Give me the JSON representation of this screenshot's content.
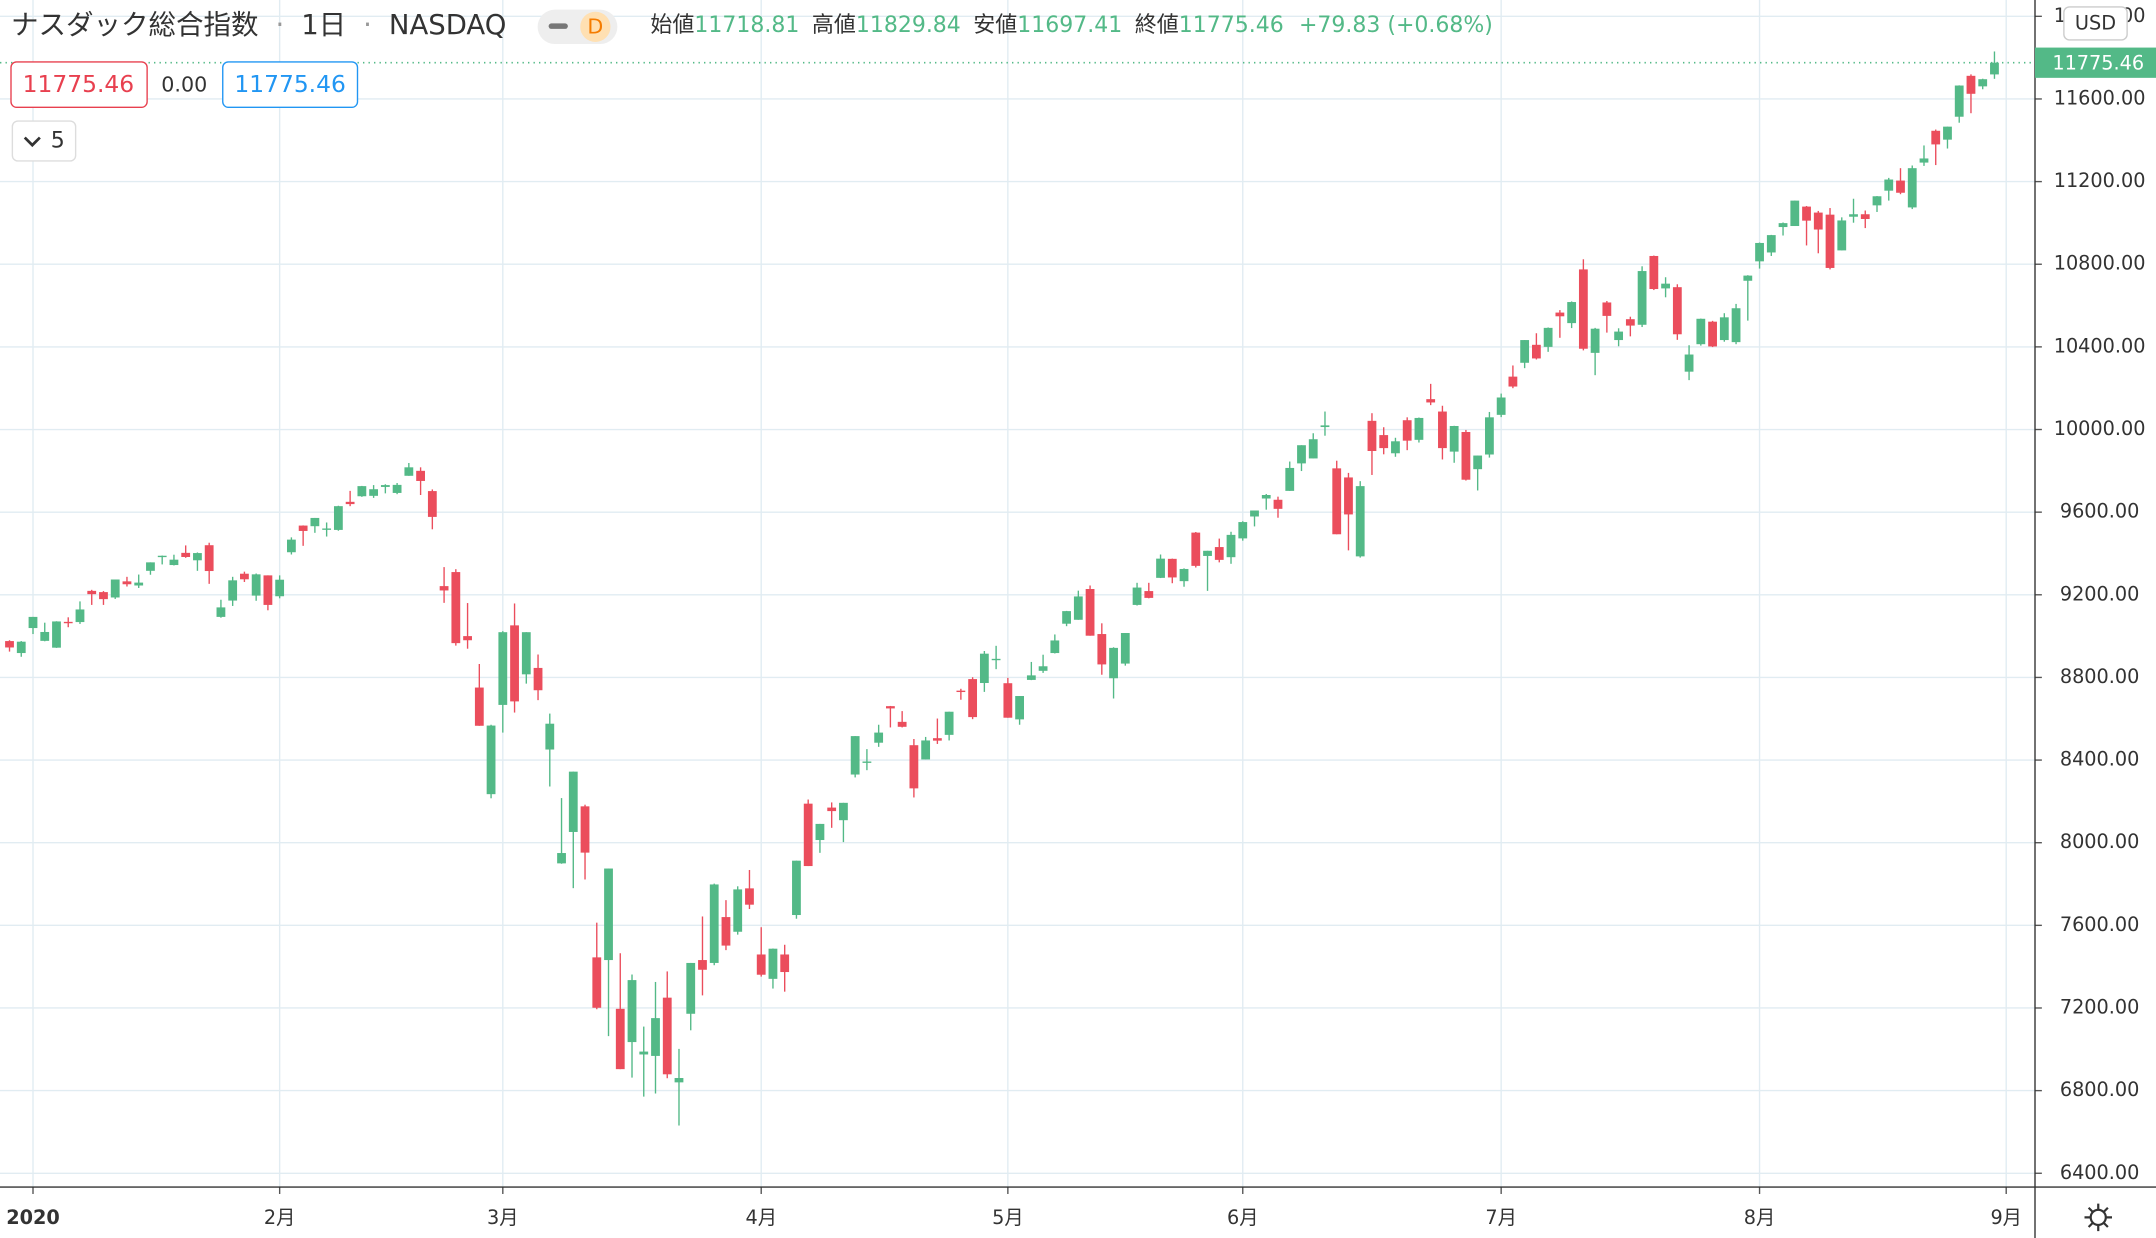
{
  "chart_data": {
    "type": "candlestick",
    "title": "ナスダック総合指数",
    "interval": "1日",
    "exchange": "NASDAQ",
    "resolution_badge": "D",
    "ohlc_labels": [
      "始値",
      "高値",
      "安値",
      "終値"
    ],
    "change": "+79.83 (+0.68%)",
    "indicator": {
      "upper": 11775.46,
      "middle": "0.00",
      "lower": 11775.46,
      "count": 5
    },
    "currency": "USD",
    "up_color": "#53b987",
    "down_color": "#eb4d5c",
    "grid": true,
    "ylim": [
      6333,
      12079
    ],
    "yticks": [
      {
        "value": 6400,
        "label": "6400.00"
      },
      {
        "value": 6800,
        "label": "6800.00"
      },
      {
        "value": 7200,
        "label": "7200.00"
      },
      {
        "value": 7600,
        "label": "7600.00"
      },
      {
        "value": 8000,
        "label": "8000.00"
      },
      {
        "value": 8400,
        "label": "8400.00"
      },
      {
        "value": 8800,
        "label": "8800.00"
      },
      {
        "value": 9200,
        "label": "9200.00"
      },
      {
        "value": 9600,
        "label": "9600.00"
      },
      {
        "value": 10000,
        "label": "10000.00"
      },
      {
        "value": 10400,
        "label": "10400.00"
      },
      {
        "value": 10800,
        "label": "10800.00"
      },
      {
        "value": 11200,
        "label": "11200.00"
      },
      {
        "value": 11600,
        "label": "11600.00"
      },
      {
        "value": 12000,
        "label": "12000.00"
      }
    ],
    "categories": [
      null,
      null,
      "2020",
      null,
      null,
      null,
      null,
      null,
      null,
      null,
      null,
      null,
      null,
      null,
      null,
      null,
      null,
      null,
      null,
      null,
      null,
      null,
      null,
      "2月",
      null,
      null,
      null,
      null,
      null,
      null,
      null,
      null,
      null,
      null,
      null,
      null,
      null,
      null,
      null,
      null,
      null,
      null,
      "3月",
      null,
      null,
      null,
      null,
      null,
      null,
      null,
      null,
      null,
      null,
      null,
      null,
      null,
      null,
      null,
      null,
      null,
      null,
      null,
      null,
      null,
      "4月",
      null,
      null,
      null,
      null,
      null,
      null,
      null,
      null,
      null,
      null,
      null,
      null,
      null,
      null,
      null,
      null,
      null,
      null,
      null,
      null,
      "5月",
      null,
      null,
      null,
      null,
      null,
      null,
      null,
      null,
      null,
      null,
      null,
      null,
      null,
      null,
      null,
      null,
      null,
      null,
      null,
      "6月",
      null,
      null,
      null,
      null,
      null,
      null,
      null,
      null,
      null,
      null,
      null,
      null,
      null,
      null,
      null,
      null,
      null,
      null,
      null,
      null,
      null,
      "7月",
      null,
      null,
      null,
      null,
      null,
      null,
      null,
      null,
      null,
      null,
      null,
      null,
      null,
      null,
      null,
      null,
      null,
      null,
      null,
      null,
      null,
      "8月",
      null,
      null,
      null,
      null,
      null,
      null,
      null,
      null,
      null,
      null,
      null,
      null,
      null,
      null,
      null,
      null,
      null,
      null,
      null,
      null,
      "9月"
    ],
    "open": [
      8976,
      8918,
      9039,
      8977,
      8944,
      9069,
      9068,
      9219,
      9213,
      9187,
      9265,
      9245,
      9316,
      9389,
      9344,
      9403,
      9367,
      9440,
      9093,
      9172,
      9302,
      9196,
      9294,
      9193,
      9406,
      9535,
      9532,
      9521,
      9514,
      9650,
      9677,
      9679,
      9722,
      9693,
      9776,
      9800,
      9702,
      9242,
      9310,
      9000,
      8751,
      8235,
      8667,
      9052,
      8815,
      8846,
      8451,
      7900,
      8052,
      8176,
      7445,
      7432,
      7196,
      7035,
      6975,
      6968,
      7250,
      6840,
      7172,
      7432,
      7418,
      7640,
      7569,
      7779,
      7459,
      7341,
      7459,
      7650,
      8189,
      8013,
      8170,
      8109,
      8330,
      8388,
      8484,
      8661,
      8585,
      8472,
      8403,
      8506,
      8522,
      8736,
      8792,
      8773,
      8889,
      8772,
      8597,
      8788,
      8832,
      8918,
      9060,
      9079,
      9228,
      9010,
      8796,
      8867,
      9151,
      9218,
      9282,
      9374,
      9266,
      9501,
      9388,
      9431,
      9382,
      9473,
      9579,
      9666,
      9660,
      9703,
      9836,
      9860,
      10012,
      9812,
      9768,
      9386,
      10042,
      9973,
      9885,
      10045,
      9950,
      10147,
      10087,
      9893,
      9988,
      9808,
      9879,
      10071,
      10256,
      10323,
      10410,
      10400,
      10566,
      10515,
      10775,
      10371,
      10615,
      10433,
      10534,
      10507,
      10840,
      10683,
      10689,
      10280,
      10413,
      10522,
      10433,
      10423,
      10720,
      10814,
      10857,
      10980,
      10985,
      11079,
      11050,
      11040,
      10867,
      11030,
      11042,
      11085,
      11156,
      11205,
      11075,
      11292,
      11446,
      11403,
      11514,
      11712,
      11661,
      11718.81,
      null
    ],
    "high": [
      8980,
      8976,
      9093,
      9065,
      9072,
      9091,
      9168,
      9224,
      9218,
      9274,
      9287,
      9298,
      9357,
      9390,
      9394,
      9439,
      9405,
      9452,
      9176,
      9287,
      9312,
      9303,
      9294,
      9294,
      9478,
      9536,
      9572,
      9550,
      9631,
      9703,
      9727,
      9731,
      9735,
      9741,
      9838,
      9817,
      9710,
      9334,
      9324,
      9160,
      8865,
      8571,
      9024,
      9158,
      9019,
      8911,
      8625,
      8216,
      8344,
      8184,
      7613,
      7875,
      7465,
      7362,
      7110,
      7326,
      7377,
      7002,
      7418,
      7643,
      7802,
      7722,
      7789,
      7868,
      7591,
      7488,
      7506,
      7913,
      8209,
      8091,
      8195,
      8193,
      8516,
      8453,
      8571,
      8662,
      8637,
      8502,
      8512,
      8601,
      8634,
      8745,
      8801,
      8928,
      8953,
      8798,
      8710,
      8875,
      8910,
      9008,
      9122,
      9220,
      9245,
      9062,
      8946,
      9015,
      9258,
      9258,
      9395,
      9375,
      9328,
      9504,
      9413,
      9472,
      9505,
      9556,
      9608,
      9688,
      9675,
      9845,
      9924,
      9982,
      10087,
      9849,
      9790,
      9750,
      10079,
      10011,
      9960,
      10059,
      10058,
      10221,
      10115,
      10018,
      9998,
      9874,
      10085,
      10174,
      10310,
      10433,
      10466,
      10494,
      10578,
      10620,
      10824,
      10492,
      10622,
      10490,
      10546,
      10790,
      10842,
      10737,
      10703,
      10408,
      10537,
      10526,
      10563,
      10608,
      10747,
      10905,
      10942,
      11002,
      11108,
      11082,
      11058,
      11072,
      11027,
      11117,
      11060,
      11130,
      11218,
      11265,
      11278,
      11375,
      11452,
      11466,
      11666,
      11719,
      11698,
      11829.84,
      null
    ],
    "low": [
      8925,
      8900,
      9010,
      8975,
      8943,
      9043,
      9059,
      9151,
      9151,
      9180,
      9240,
      9233,
      9297,
      9347,
      9342,
      9379,
      9316,
      9253,
      9089,
      9146,
      9262,
      9171,
      9125,
      9183,
      9395,
      9437,
      9500,
      9482,
      9510,
      9629,
      9674,
      9669,
      9691,
      9687,
      9776,
      9683,
      9517,
      9161,
      8954,
      8939,
      8566,
      8215,
      8533,
      8630,
      8770,
      8690,
      8272,
      7898,
      7780,
      7822,
      7194,
      7064,
      6904,
      6863,
      6771,
      6786,
      6860,
      6631,
      7092,
      7261,
      7407,
      7480,
      7555,
      7679,
      7352,
      7294,
      7279,
      7632,
      7887,
      7951,
      8072,
      8003,
      8316,
      8351,
      8464,
      8558,
      8558,
      8219,
      8403,
      8478,
      8495,
      8692,
      8598,
      8730,
      8840,
      8605,
      8571,
      8787,
      8822,
      8916,
      9048,
      9079,
      9002,
      8813,
      8698,
      8857,
      9148,
      9183,
      9281,
      9256,
      9239,
      9332,
      9219,
      9357,
      9350,
      9462,
      9531,
      9612,
      9573,
      9703,
      9799,
      9860,
      9970,
      9493,
      9415,
      9380,
      9780,
      9880,
      9868,
      9900,
      9937,
      10118,
      9855,
      9839,
      9753,
      9705,
      9864,
      10060,
      10200,
      10297,
      10339,
      10376,
      10444,
      10491,
      10383,
      10263,
      10469,
      10403,
      10451,
      10496,
      10675,
      10640,
      10434,
      10239,
      10406,
      10399,
      10425,
      10413,
      10527,
      10779,
      10840,
      10939,
      10985,
      10891,
      10853,
      10775,
      10867,
      11001,
      10975,
      11053,
      11108,
      11139,
      11067,
      11276,
      11280,
      11360,
      11485,
      11531,
      11647,
      11697.41,
      null
    ],
    "close": [
      8945,
      8973,
      9093,
      9020,
      9071,
      9068,
      9129,
      9203,
      9179,
      9274,
      9251,
      9259,
      9357,
      9389,
      9370,
      9383,
      9402,
      9315,
      9139,
      9270,
      9275,
      9299,
      9151,
      9273,
      9467,
      9509,
      9572,
      9521,
      9629,
      9639,
      9726,
      9711,
      9731,
      9732,
      9817,
      9751,
      9577,
      9221,
      8966,
      8980,
      8566,
      8567,
      9019,
      8684,
      9019,
      8738,
      8576,
      7950,
      8344,
      7952,
      7201,
      7875,
      6904,
      7335,
      6989,
      7151,
      6879,
      6861,
      7418,
      7385,
      7798,
      7502,
      7774,
      7700,
      7361,
      7487,
      7374,
      7913,
      7887,
      8091,
      8153,
      8193,
      8516,
      8393,
      8533,
      8650,
      8561,
      8263,
      8495,
      8494,
      8634,
      8730,
      8608,
      8915,
      8890,
      8605,
      8710,
      8810,
      8854,
      8979,
      9121,
      9192,
      9002,
      8863,
      8943,
      9015,
      9235,
      9185,
      9375,
      9284,
      9325,
      9340,
      9413,
      9369,
      9490,
      9552,
      9608,
      9683,
      9616,
      9814,
      9924,
      9953,
      10020,
      9493,
      9589,
      9726,
      9896,
      9910,
      9943,
      9946,
      10056,
      10131,
      9910,
      10017,
      9757,
      9874,
      10059,
      10155,
      10208,
      10433,
      10344,
      10492,
      10548,
      10617,
      10391,
      10488,
      10550,
      10474,
      10503,
      10767,
      10680,
      10706,
      10461,
      10363,
      10536,
      10402,
      10543,
      10587,
      10745,
      10903,
      10941,
      10999,
      11108,
      11011,
      10968,
      10782,
      11012,
      11042,
      11019,
      11129,
      11210,
      11146,
      11265,
      11312,
      11380,
      11466,
      11665,
      11625,
      11695.63,
      11775.46,
      null
    ]
  }
}
